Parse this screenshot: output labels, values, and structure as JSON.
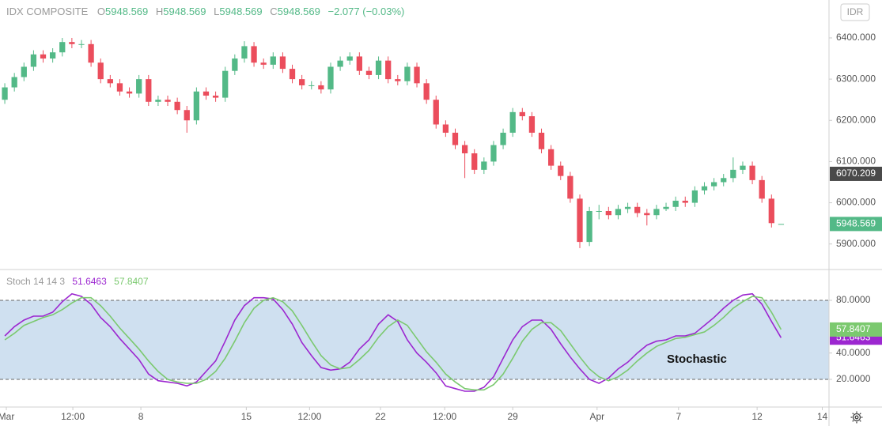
{
  "chart_data": {
    "type": "candlestick",
    "title": "IDX COMPOSITE",
    "ohlc_letters": [
      "O",
      "H",
      "L",
      "C"
    ],
    "change_label": "−2.077 (−0.03%)",
    "currency": "IDR",
    "up_color": "#53b987",
    "down_color": "#eb4d5c",
    "xlim": [
      -0.5,
      86
    ],
    "xticks": [
      {
        "value": 0.16,
        "label": "Mar"
      },
      {
        "value": 7.1,
        "label": "12:00"
      },
      {
        "value": 14.2,
        "label": "8"
      },
      {
        "value": 25.2,
        "label": "15"
      },
      {
        "value": 31.8,
        "label": "12:00"
      },
      {
        "value": 39.2,
        "label": "22"
      },
      {
        "value": 45.9,
        "label": "12:00"
      },
      {
        "value": 53.0,
        "label": "29"
      },
      {
        "value": 61.8,
        "label": "Apr"
      },
      {
        "value": 70.3,
        "label": "7"
      },
      {
        "value": 78.5,
        "label": "12"
      },
      {
        "value": 85.3,
        "label": "14"
      }
    ],
    "ylim": [
      5840,
      6492
    ],
    "yticks": [
      {
        "value": 5900,
        "label": "5900.000"
      },
      {
        "value": 6000,
        "label": "6000.000"
      },
      {
        "value": 6100,
        "label": "6100.000"
      },
      {
        "value": 6200,
        "label": "6200.000"
      },
      {
        "value": 6300,
        "label": "6300.000"
      },
      {
        "value": 6400,
        "label": "6400.000"
      }
    ],
    "marker_price": 6070.209,
    "candles": {
      "open": [
        6250,
        6280,
        6305,
        6330,
        6360,
        6350,
        6365,
        6390,
        6385,
        6385,
        6340,
        6300,
        6290,
        6270,
        6265,
        6300,
        6245,
        6250,
        6245,
        6225,
        6200,
        6270,
        6260,
        6255,
        6320,
        6350,
        6380,
        6340,
        6335,
        6355,
        6325,
        6300,
        6285,
        6285,
        6275,
        6330,
        6345,
        6355,
        6320,
        6310,
        6345,
        6300,
        6295,
        6330,
        6290,
        6250,
        6190,
        6170,
        6140,
        6120,
        6080,
        6100,
        6140,
        6170,
        6220,
        6210,
        6170,
        6130,
        6090,
        6065,
        6010,
        5905,
        5980,
        5980,
        5970,
        5985,
        5990,
        5975,
        5970,
        5985,
        5990,
        6005,
        6000,
        6030,
        6040,
        6050,
        6060,
        6080,
        6090,
        6055,
        6010,
        5948.569
      ],
      "high": [
        6290,
        6315,
        6340,
        6370,
        6370,
        6375,
        6400,
        6400,
        6395,
        6395,
        6350,
        6310,
        6300,
        6280,
        6310,
        6310,
        6260,
        6260,
        6255,
        6235,
        6280,
        6280,
        6270,
        6330,
        6360,
        6392,
        6390,
        6350,
        6365,
        6365,
        6335,
        6310,
        6295,
        6295,
        6340,
        6355,
        6365,
        6365,
        6330,
        6355,
        6355,
        6310,
        6340,
        6340,
        6300,
        6260,
        6200,
        6180,
        6150,
        6130,
        6110,
        6150,
        6180,
        6230,
        6230,
        6220,
        6180,
        6140,
        6100,
        6075,
        6020,
        5990,
        5995,
        5990,
        5995,
        6000,
        6000,
        5985,
        5995,
        6000,
        6015,
        6015,
        6040,
        6050,
        6060,
        6070,
        6110,
        6100,
        6100,
        6065,
        6020,
        5948.569
      ],
      "low": [
        6240,
        6270,
        6295,
        6320,
        6340,
        6340,
        6355,
        6375,
        6375,
        6330,
        6290,
        6280,
        6260,
        6255,
        6255,
        6235,
        6235,
        6235,
        6215,
        6170,
        6190,
        6250,
        6245,
        6245,
        6310,
        6340,
        6330,
        6325,
        6325,
        6315,
        6290,
        6275,
        6275,
        6265,
        6265,
        6320,
        6335,
        6310,
        6300,
        6300,
        6290,
        6285,
        6285,
        6280,
        6240,
        6180,
        6160,
        6130,
        6060,
        6070,
        6070,
        6090,
        6130,
        6160,
        6200,
        6160,
        6120,
        6080,
        6055,
        6000,
        5890,
        5895,
        5960,
        5960,
        5960,
        5975,
        5965,
        5945,
        5960,
        5980,
        5980,
        5990,
        5990,
        6020,
        6030,
        6040,
        6050,
        6070,
        6045,
        6000,
        5940,
        5948.569
      ],
      "close": [
        6280,
        6305,
        6330,
        6360,
        6350,
        6365,
        6390,
        6385,
        6385,
        6340,
        6300,
        6290,
        6270,
        6265,
        6300,
        6245,
        6250,
        6245,
        6225,
        6200,
        6270,
        6260,
        6255,
        6320,
        6350,
        6380,
        6340,
        6335,
        6355,
        6325,
        6300,
        6285,
        6285,
        6275,
        6330,
        6345,
        6355,
        6320,
        6310,
        6345,
        6300,
        6295,
        6330,
        6290,
        6250,
        6190,
        6170,
        6140,
        6120,
        6080,
        6100,
        6140,
        6170,
        6220,
        6210,
        6170,
        6130,
        6090,
        6065,
        6010,
        5905,
        5980,
        5980,
        5970,
        5985,
        5990,
        5975,
        5970,
        5985,
        5990,
        6005,
        6000,
        6030,
        6040,
        6050,
        6060,
        6080,
        6090,
        6055,
        6010,
        5950.646,
        5948.569
      ]
    },
    "stochastic": {
      "label": "Stoch 14 14 3",
      "ylim": [
        -1,
        102.8
      ],
      "yticks": [
        {
          "value": 20,
          "label": "20.0000"
        },
        {
          "value": 40,
          "label": "40.0000"
        },
        {
          "value": 80,
          "label": "80.0000"
        }
      ],
      "overbought": 80,
      "oversold": 20,
      "band_color": "#cfe0f0",
      "annotation": "Stochastic",
      "series": [
        {
          "color": "#9c27d0",
          "values": [
            53,
            60,
            65,
            68,
            68,
            71,
            79,
            85,
            83,
            77,
            67,
            60,
            51,
            43,
            35,
            24,
            19,
            18,
            17,
            15,
            18,
            26,
            34,
            49,
            65,
            76,
            82,
            82,
            81,
            73,
            62,
            48,
            38,
            29,
            27,
            28,
            33,
            43,
            50,
            62,
            69,
            64,
            50,
            40,
            33,
            25,
            15,
            13,
            11,
            11,
            14,
            22,
            36,
            50,
            60,
            65,
            65,
            58,
            47,
            37,
            28,
            20,
            17,
            21,
            28,
            33,
            40,
            46,
            49,
            50,
            53,
            53,
            55,
            61,
            67,
            74,
            80,
            84,
            85,
            77,
            64,
            51.6463
          ]
        },
        {
          "color": "#7bc96f",
          "values": [
            50,
            55,
            61,
            64,
            67,
            69,
            73,
            78,
            82,
            82,
            76,
            68,
            59,
            51,
            43,
            34,
            26,
            20,
            18,
            17,
            17,
            20,
            26,
            36,
            49,
            63,
            74,
            80,
            82,
            79,
            72,
            61,
            49,
            38,
            31,
            28,
            29,
            35,
            42,
            52,
            60,
            65,
            61,
            51,
            41,
            33,
            24,
            18,
            13,
            12,
            12,
            16,
            24,
            36,
            49,
            58,
            63,
            63,
            57,
            47,
            37,
            28,
            22,
            19,
            22,
            27,
            34,
            40,
            45,
            48,
            51,
            52,
            54,
            56,
            61,
            67,
            74,
            79,
            83,
            82,
            71,
            57.8407
          ]
        }
      ]
    }
  }
}
